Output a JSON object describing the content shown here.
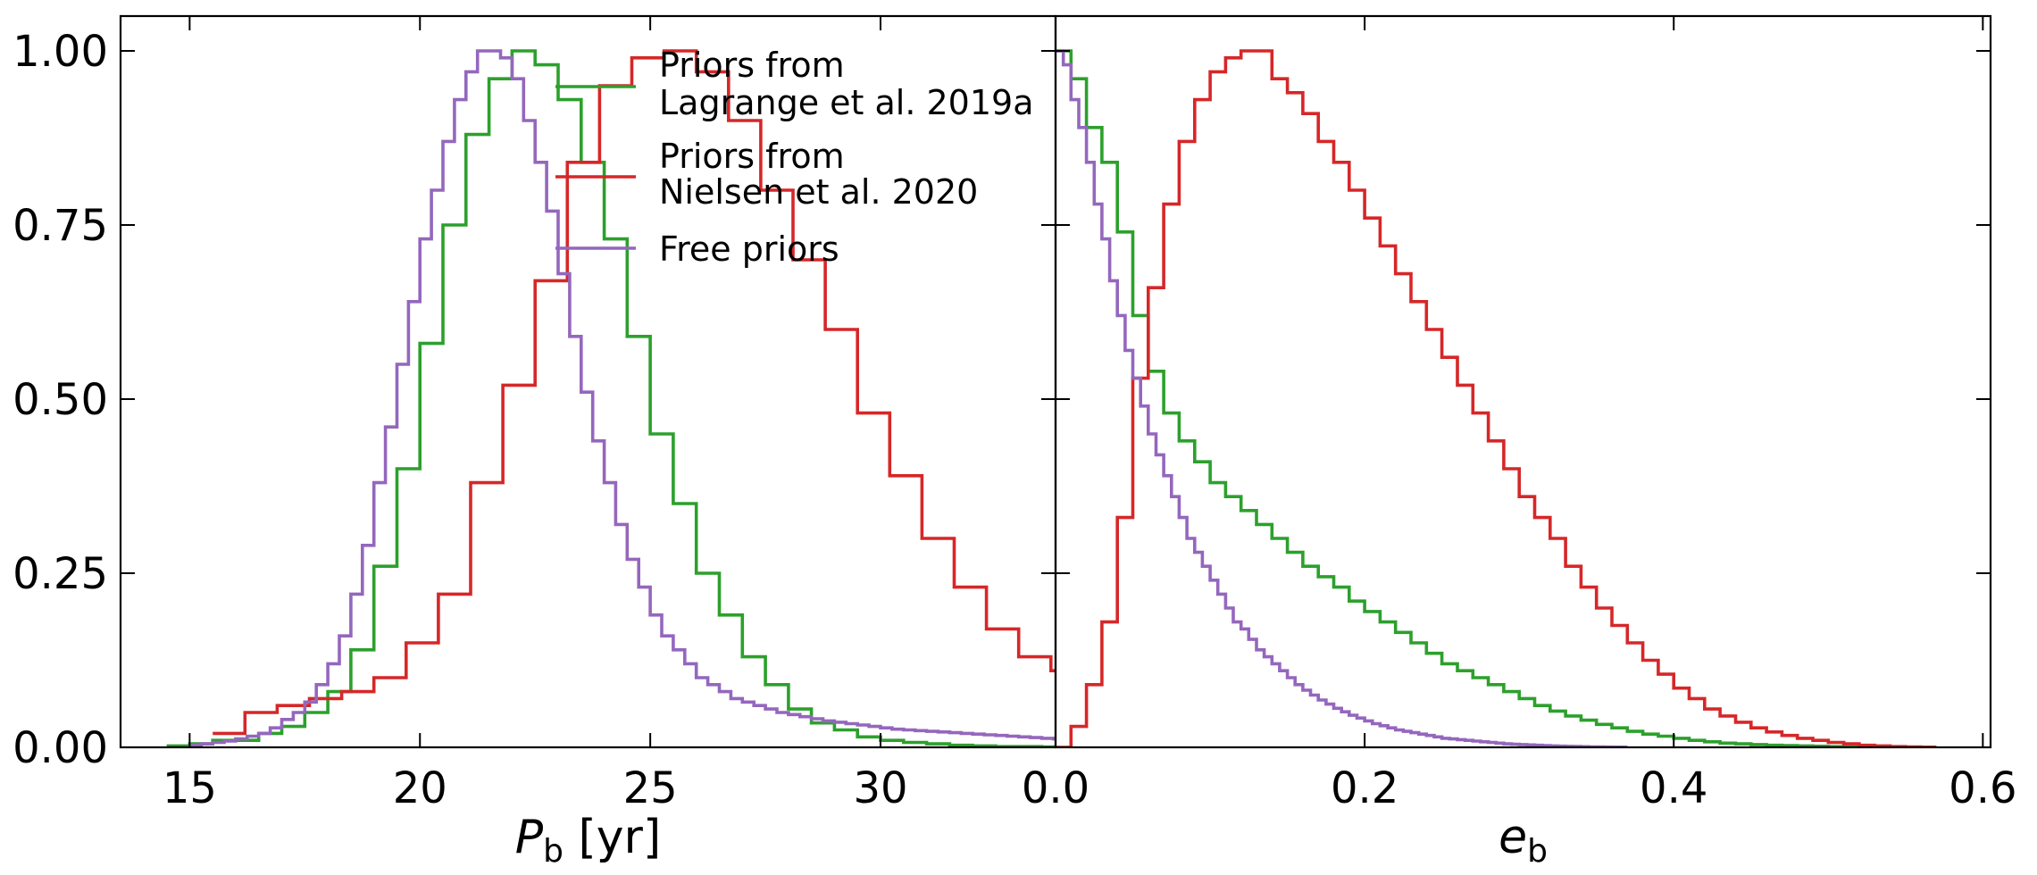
{
  "chart_data": [
    {
      "type": "line",
      "step": true,
      "xlabel_main": "P",
      "xlabel_sub": "b",
      "xlabel_unit": "[yr]",
      "ylabel": "",
      "xlim": [
        13.5,
        33.8
      ],
      "ylim": [
        0,
        1.05
      ],
      "xticks": [
        15,
        20,
        25,
        30
      ],
      "xtick_labels": [
        "15",
        "20",
        "25",
        "30"
      ],
      "yticks": [
        0,
        0.25,
        0.5,
        0.75,
        1.0
      ],
      "ytick_labels": [
        "0.00",
        "0.25",
        "0.50",
        "0.75",
        "1.00"
      ],
      "grid": false,
      "legend": "top-right",
      "series": [
        {
          "name": "Priors from Lagrange et al. 2019a",
          "legend_lines": [
            "Priors from",
            "Lagrange et al. 2019a"
          ],
          "color": "#2ca02c",
          "x_start": 14.5,
          "bin_width": 0.5,
          "values": [
            0.002,
            0.005,
            0.01,
            0.01,
            0.02,
            0.03,
            0.05,
            0.08,
            0.14,
            0.26,
            0.4,
            0.58,
            0.75,
            0.88,
            0.96,
            1.0,
            0.98,
            0.93,
            0.84,
            0.73,
            0.59,
            0.45,
            0.35,
            0.25,
            0.19,
            0.13,
            0.09,
            0.055,
            0.035,
            0.025,
            0.015,
            0.01,
            0.007,
            0.005,
            0.003,
            0.002,
            0.001,
            0.001,
            0.0005,
            0.0003
          ]
        },
        {
          "name": "Priors from Nielsen et al. 2020",
          "legend_lines": [
            "Priors from",
            "Nielsen et al. 2020"
          ],
          "color": "#d62728",
          "x_start": 15.5,
          "bin_width": 0.7,
          "values": [
            0.02,
            0.05,
            0.06,
            0.07,
            0.08,
            0.1,
            0.15,
            0.22,
            0.38,
            0.52,
            0.67,
            0.84,
            0.95,
            0.99,
            1.0,
            0.97,
            0.9,
            0.8,
            0.7,
            0.6,
            0.48,
            0.39,
            0.3,
            0.23,
            0.17,
            0.13,
            0.11,
            0.08,
            0.06,
            0.04,
            0.03,
            0.02,
            0.015,
            0.01,
            0.007,
            0.005,
            0.003,
            0.002,
            0.0015,
            0.001,
            0.0005,
            0.0003,
            0.0002,
            0.0001
          ]
        },
        {
          "name": "Free priors",
          "legend_lines": [
            "Free priors"
          ],
          "color": "#9467bd",
          "x_start": 15.0,
          "bin_width": 0.25,
          "values": [
            0.003,
            0.005,
            0.007,
            0.009,
            0.012,
            0.016,
            0.02,
            0.028,
            0.04,
            0.05,
            0.065,
            0.09,
            0.12,
            0.16,
            0.22,
            0.29,
            0.38,
            0.46,
            0.55,
            0.64,
            0.73,
            0.8,
            0.87,
            0.93,
            0.97,
            1.0,
            1.0,
            0.99,
            0.96,
            0.9,
            0.84,
            0.77,
            0.68,
            0.59,
            0.51,
            0.44,
            0.38,
            0.32,
            0.27,
            0.23,
            0.19,
            0.16,
            0.14,
            0.12,
            0.1,
            0.09,
            0.08,
            0.07,
            0.065,
            0.06,
            0.055,
            0.05,
            0.047,
            0.044,
            0.041,
            0.038,
            0.036,
            0.034,
            0.032,
            0.03,
            0.028,
            0.026,
            0.025,
            0.024,
            0.023,
            0.022,
            0.021,
            0.02,
            0.019,
            0.018,
            0.017,
            0.016,
            0.015,
            0.014,
            0.013,
            0.012,
            0.011,
            0.01,
            0.009,
            0.008,
            0.007,
            0.006,
            0.005,
            0.004,
            0.003,
            0.002,
            0.0015,
            0.001
          ]
        }
      ]
    },
    {
      "type": "line",
      "step": true,
      "xlabel_main": "e",
      "xlabel_sub": "b",
      "xlabel_unit": "",
      "ylabel": "",
      "xlim": [
        0.0,
        0.605
      ],
      "ylim": [
        0,
        1.05
      ],
      "xticks": [
        0.0,
        0.2,
        0.4,
        0.6
      ],
      "xtick_labels": [
        "0.0",
        "0.2",
        "0.4",
        "0.6"
      ],
      "grid": false,
      "series": [
        {
          "name": "Priors from Lagrange et al. 2019a",
          "color": "#2ca02c",
          "x_start": 0.0,
          "bin_width": 0.01,
          "values": [
            1.0,
            0.96,
            0.89,
            0.84,
            0.74,
            0.62,
            0.54,
            0.48,
            0.44,
            0.41,
            0.38,
            0.36,
            0.34,
            0.32,
            0.3,
            0.28,
            0.26,
            0.245,
            0.23,
            0.21,
            0.195,
            0.18,
            0.165,
            0.15,
            0.135,
            0.12,
            0.11,
            0.1,
            0.09,
            0.08,
            0.07,
            0.06,
            0.052,
            0.045,
            0.039,
            0.033,
            0.028,
            0.023,
            0.019,
            0.016,
            0.013,
            0.01,
            0.008,
            0.006,
            0.005,
            0.004,
            0.003,
            0.0025,
            0.002,
            0.0015,
            0.001,
            0.0008,
            0.0005,
            0.0003,
            0.0002
          ]
        },
        {
          "name": "Priors from Nielsen et al. 2020",
          "color": "#d62728",
          "x_start": 0.0,
          "bin_width": 0.01,
          "values": [
            0.0,
            0.03,
            0.09,
            0.18,
            0.33,
            0.53,
            0.66,
            0.78,
            0.87,
            0.93,
            0.97,
            0.99,
            1.0,
            1.0,
            0.96,
            0.94,
            0.91,
            0.87,
            0.84,
            0.8,
            0.76,
            0.72,
            0.68,
            0.64,
            0.6,
            0.56,
            0.52,
            0.48,
            0.44,
            0.4,
            0.36,
            0.33,
            0.3,
            0.26,
            0.23,
            0.2,
            0.175,
            0.15,
            0.125,
            0.105,
            0.085,
            0.07,
            0.055,
            0.045,
            0.036,
            0.028,
            0.022,
            0.017,
            0.013,
            0.01,
            0.007,
            0.005,
            0.003,
            0.002,
            0.001,
            0.0005,
            0.0002
          ]
        },
        {
          "name": "Free priors",
          "color": "#9467bd",
          "x_start": 0.0,
          "bin_width": 0.005,
          "values": [
            1.0,
            0.98,
            0.93,
            0.89,
            0.84,
            0.78,
            0.73,
            0.67,
            0.62,
            0.57,
            0.53,
            0.49,
            0.45,
            0.42,
            0.39,
            0.36,
            0.33,
            0.3,
            0.28,
            0.26,
            0.24,
            0.22,
            0.2,
            0.18,
            0.17,
            0.155,
            0.14,
            0.13,
            0.12,
            0.11,
            0.1,
            0.09,
            0.082,
            0.075,
            0.068,
            0.062,
            0.056,
            0.051,
            0.046,
            0.042,
            0.038,
            0.034,
            0.031,
            0.028,
            0.025,
            0.023,
            0.021,
            0.019,
            0.017,
            0.015,
            0.013,
            0.012,
            0.011,
            0.01,
            0.009,
            0.008,
            0.007,
            0.006,
            0.005,
            0.0045,
            0.004,
            0.0035,
            0.003,
            0.0025,
            0.002,
            0.0017,
            0.0014,
            0.0011,
            0.0009,
            0.0007,
            0.0005,
            0.0004,
            0.0003,
            0.0002
          ]
        }
      ]
    }
  ]
}
